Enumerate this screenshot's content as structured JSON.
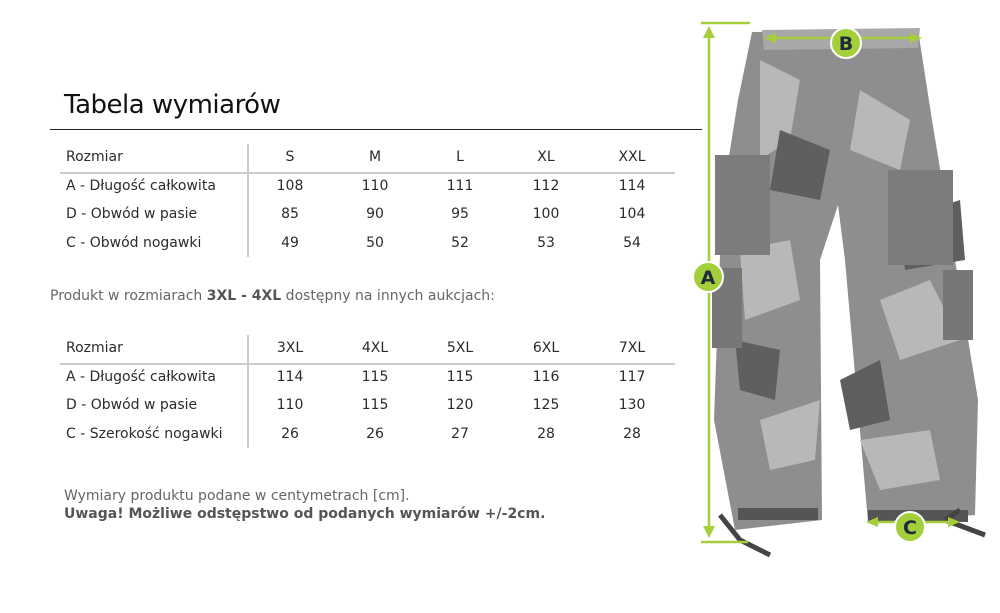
{
  "title": "Tabela wymiarów",
  "table1": {
    "headers": [
      "Rozmiar",
      "S",
      "M",
      "L",
      "XL",
      "XXL"
    ],
    "rows": [
      [
        "A - Długość całkowita",
        "108",
        "110",
        "111",
        "112",
        "114"
      ],
      [
        "D - Obwód w pasie",
        "85",
        "90",
        "95",
        "100",
        "104"
      ],
      [
        "C - Obwód nogawki",
        "49",
        "50",
        "52",
        "53",
        "54"
      ]
    ]
  },
  "note": {
    "prefix": "Produkt w rozmiarach ",
    "bold": "3XL - 4XL",
    "suffix": " dostępny na innych aukcjach:"
  },
  "table2": {
    "headers": [
      "Rozmiar",
      "3XL",
      "4XL",
      "5XL",
      "6XL",
      "7XL"
    ],
    "rows": [
      [
        "A - Długość całkowita",
        "114",
        "115",
        "115",
        "116",
        "117"
      ],
      [
        "D - Obwód w pasie",
        "110",
        "115",
        "120",
        "125",
        "130"
      ],
      [
        "C - Szerokość nogawki",
        "26",
        "26",
        "27",
        "28",
        "28"
      ]
    ]
  },
  "footer": {
    "line1": "Wymiary produktu podane w centymetrach [cm].",
    "line2": "Uwaga! Możliwe odstępstwo od podanych wymiarów +/-2cm."
  },
  "markers": {
    "a": "A",
    "b": "B",
    "c": "C"
  },
  "colors": {
    "accent": "#a3cf3a",
    "marker_text": "#1d2b3a"
  }
}
